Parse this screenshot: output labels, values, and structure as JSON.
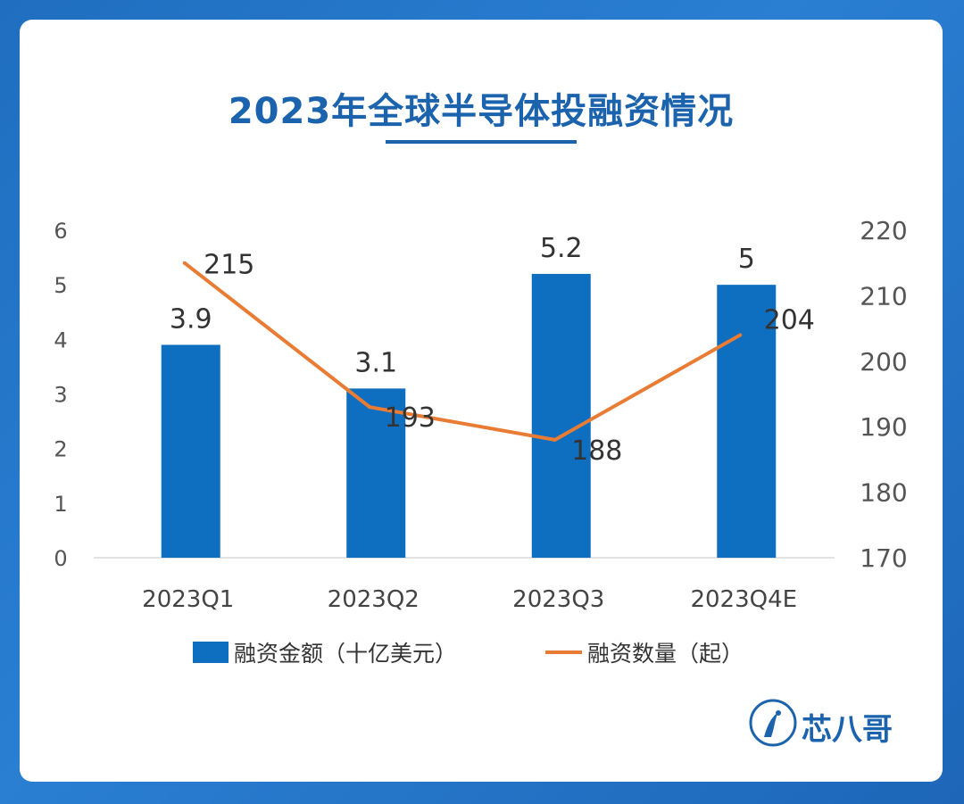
{
  "title": "2023年全球半导体投融资情况",
  "logo_text": "芯八哥",
  "colors": {
    "bar": "#0e6fc1",
    "line": "#e97c34",
    "title": "#1b63ad"
  },
  "chart_data": {
    "type": "bar+line",
    "title": "2023年全球半导体投融资情况",
    "categories": [
      "2023Q1",
      "2023Q2",
      "2023Q3",
      "2023Q4E"
    ],
    "series": [
      {
        "name": "融资金额（十亿美元）",
        "type": "bar",
        "axis": "left",
        "values": [
          3.9,
          3.1,
          5.2,
          5
        ],
        "labels": [
          "3.9",
          "3.1",
          "5.2",
          "5"
        ]
      },
      {
        "name": "融资数量（起）",
        "type": "line",
        "axis": "right",
        "values": [
          215,
          193,
          188,
          204
        ],
        "labels": [
          "215",
          "193",
          "188",
          "204"
        ]
      }
    ],
    "y_left": {
      "min": 0,
      "max": 6,
      "ticks": [
        "0",
        "1",
        "2",
        "3",
        "4",
        "5",
        "6"
      ]
    },
    "y_right": {
      "min": 170,
      "max": 220,
      "ticks": [
        "170",
        "180",
        "190",
        "200",
        "210",
        "220"
      ]
    },
    "legend": [
      "融资金额（十亿美元）",
      "融资数量（起）"
    ]
  }
}
